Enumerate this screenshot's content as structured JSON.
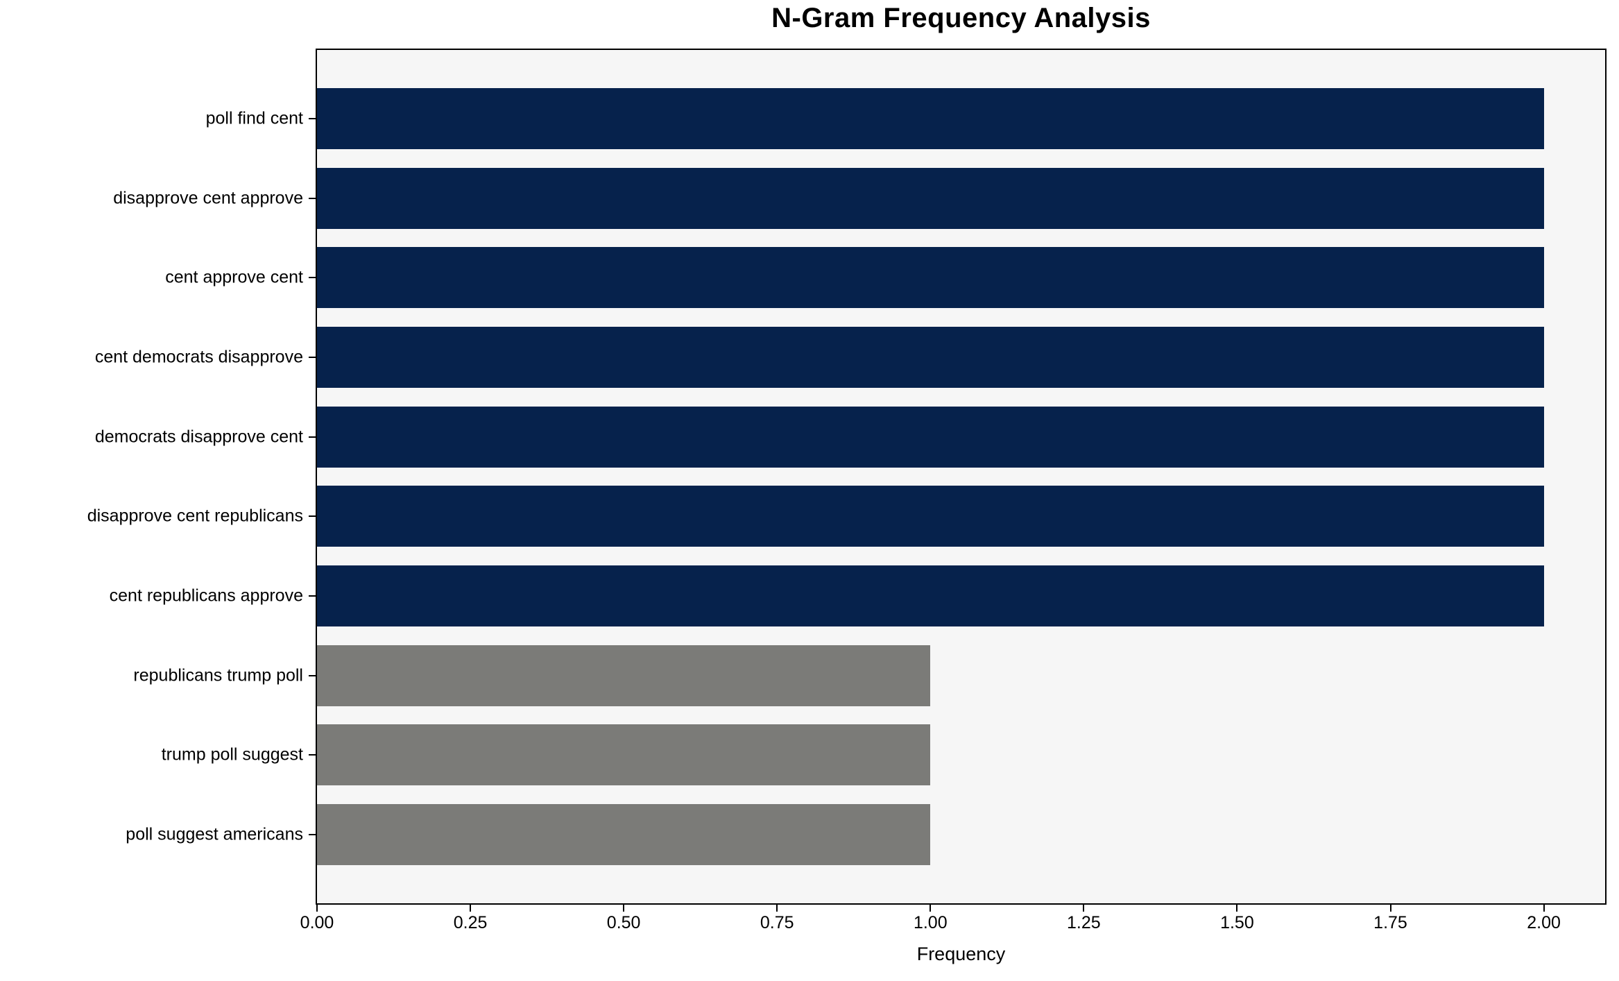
{
  "chart_data": {
    "type": "bar",
    "orientation": "horizontal",
    "title": "N-Gram Frequency Analysis",
    "xlabel": "Frequency",
    "ylabel": "",
    "categories": [
      "poll find cent",
      "disapprove cent approve",
      "cent approve cent",
      "cent democrats disapprove",
      "democrats disapprove cent",
      "disapprove cent republicans",
      "cent republicans approve",
      "republicans trump poll",
      "trump poll suggest",
      "poll suggest americans"
    ],
    "values": [
      2,
      2,
      2,
      2,
      2,
      2,
      2,
      1,
      1,
      1
    ],
    "bar_colors": [
      "#06224C",
      "#06224C",
      "#06224C",
      "#06224C",
      "#06224C",
      "#06224C",
      "#06224C",
      "#7B7B78",
      "#7B7B78",
      "#7B7B78"
    ],
    "xlim": [
      0,
      2.1
    ],
    "xticks": [
      0,
      0.25,
      0.5,
      0.75,
      1.0,
      1.25,
      1.5,
      1.75,
      2.0
    ],
    "xtick_labels": [
      "0.00",
      "0.25",
      "0.50",
      "0.75",
      "1.00",
      "1.25",
      "1.50",
      "1.75",
      "2.00"
    ],
    "grid": false,
    "legend": null,
    "colors": {
      "primary_bar": "#06224C",
      "secondary_bar": "#7B7B78",
      "plot_background": "#F6F6F6",
      "figure_background": "#FFFFFF",
      "spine": "#000000"
    }
  }
}
